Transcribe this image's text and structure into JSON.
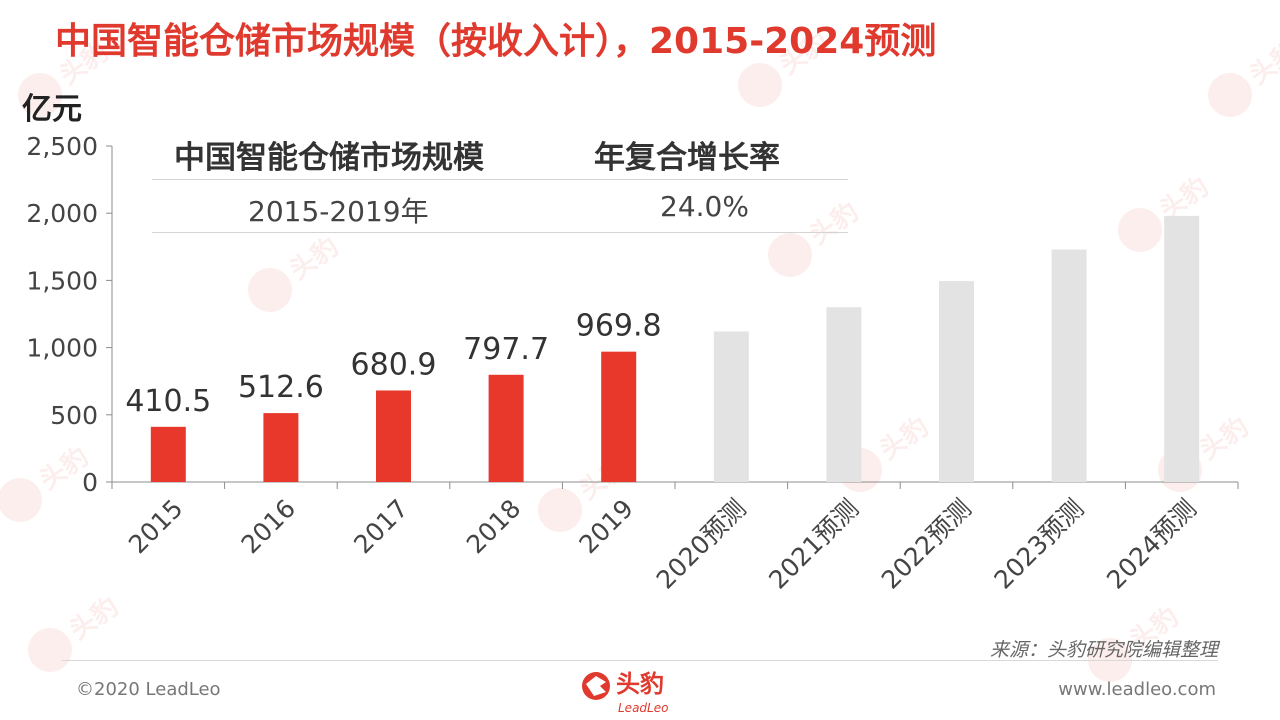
{
  "header": {
    "title": "中国智能仓储市场规模（按收入计），2015-2024预测",
    "unit": "亿元"
  },
  "cagr_table": {
    "header_left": "中国智能仓储市场规模",
    "header_right": "年复合增长率",
    "period": "2015-2019年",
    "rate": "24.0%"
  },
  "chart_data": {
    "type": "bar",
    "title": "中国智能仓储市场规模（按收入计），2015-2024预测",
    "ylabel": "亿元",
    "xlabel": "",
    "ylim": [
      0,
      2500
    ],
    "yticks": [
      0,
      500,
      1000,
      1500,
      2000,
      2500
    ],
    "ytick_labels": [
      "0",
      "500",
      "1,000",
      "1,500",
      "2,000",
      "2,500"
    ],
    "categories": [
      "2015",
      "2016",
      "2017",
      "2018",
      "2019",
      "2020预测",
      "2021预测",
      "2022预测",
      "2023预测",
      "2024预测"
    ],
    "values": [
      410.5,
      512.6,
      680.9,
      797.7,
      969.8,
      1120,
      1300,
      1495,
      1730,
      1980
    ],
    "value_labels": [
      "410.5",
      "512.6",
      "680.9",
      "797.7",
      "969.8",
      "",
      "",
      "",
      "",
      ""
    ],
    "actual_color": "#e8382b",
    "forecast_color": "#e3e3e3",
    "grid": false
  },
  "footer": {
    "source": "来源：头豹研究院编辑整理",
    "copyright": "©2020 LeadLeo",
    "website": "www.leadleo.com",
    "logo_cn": "头豹",
    "logo_en": "LeadLeo"
  },
  "colors": {
    "accent": "#e03a2e",
    "text": "#333333",
    "muted": "#777777"
  }
}
